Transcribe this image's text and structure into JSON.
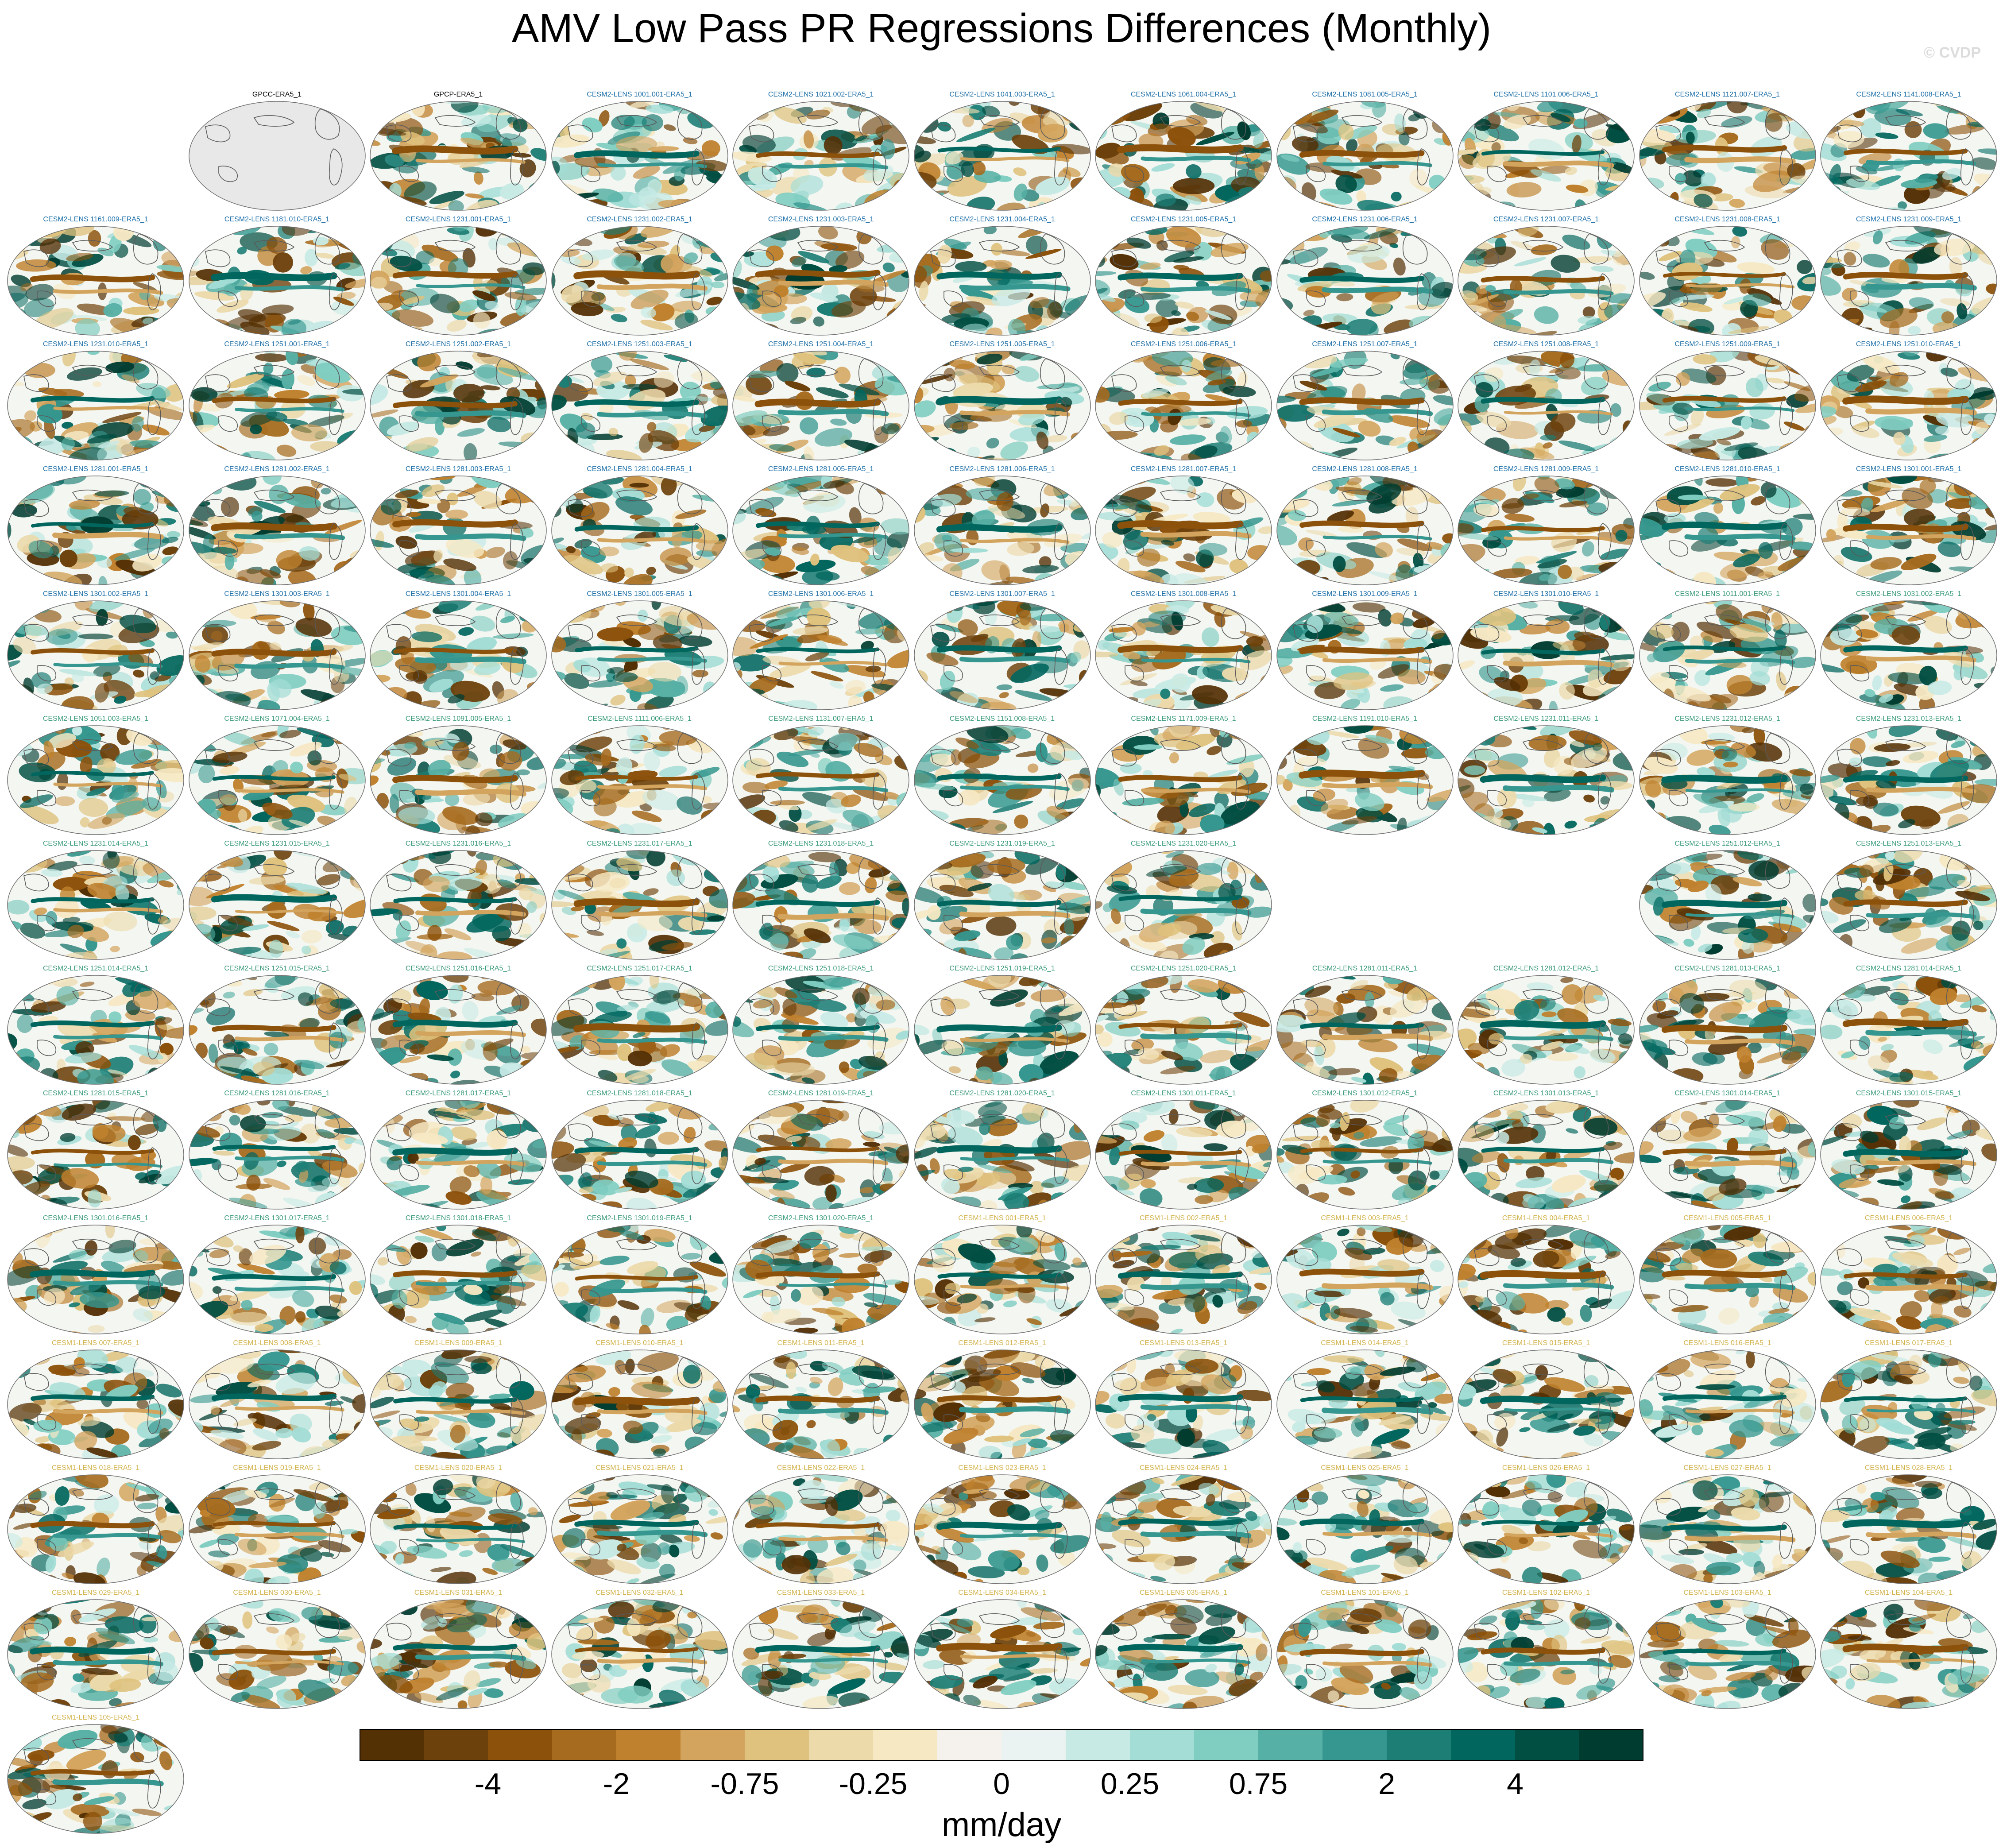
{
  "title": "AMV Low Pass PR Regressions Differences (Monthly)",
  "watermark": "© CVDP",
  "colors": {
    "observations_label": "#000000",
    "cesm2_run1_label": "#1d6fa8",
    "cesm2_run2_label": "#3a9a7a",
    "cesm1_label": "#d2b24a",
    "empty_map_fill": "#e8e8e8",
    "palette": [
      "#543005",
      "#6d410b",
      "#8c510a",
      "#a66b1e",
      "#bf812d",
      "#d3a45d",
      "#dfc27d",
      "#ecdaab",
      "#f6e8c3",
      "#f5f1ec",
      "#eaf3f1",
      "#c7eae5",
      "#a3ddd6",
      "#80cdc1",
      "#57b0a5",
      "#35978f",
      "#1c7e75",
      "#01665e",
      "#014e42",
      "#003c30"
    ]
  },
  "colorbar": {
    "tick_labels": [
      "-4",
      "-2",
      "-0.75",
      "-0.25",
      "0",
      "0.25",
      "0.75",
      "2",
      "4"
    ],
    "units": "mm/day"
  },
  "panels": [
    {
      "label": "GPCC-ERA5_1",
      "group": "obs",
      "empty": true
    },
    {
      "label": "GPCP-ERA5_1",
      "group": "obs"
    },
    {
      "label": "CESM2-LENS 1001.001-ERA5_1",
      "group": "cesm2a"
    },
    {
      "label": "CESM2-LENS 1021.002-ERA5_1",
      "group": "cesm2a"
    },
    {
      "label": "CESM2-LENS 1041.003-ERA5_1",
      "group": "cesm2a"
    },
    {
      "label": "CESM2-LENS 1061.004-ERA5_1",
      "group": "cesm2a"
    },
    {
      "label": "CESM2-LENS 1081.005-ERA5_1",
      "group": "cesm2a"
    },
    {
      "label": "CESM2-LENS 1101.006-ERA5_1",
      "group": "cesm2a"
    },
    {
      "label": "CESM2-LENS 1121.007-ERA5_1",
      "group": "cesm2a"
    },
    {
      "label": "CESM2-LENS 1141.008-ERA5_1",
      "group": "cesm2a"
    },
    {
      "label": "CESM2-LENS 1161.009-ERA5_1",
      "group": "cesm2a"
    },
    {
      "label": "CESM2-LENS 1181.010-ERA5_1",
      "group": "cesm2a"
    },
    {
      "label": "CESM2-LENS 1231.001-ERA5_1",
      "group": "cesm2a"
    },
    {
      "label": "CESM2-LENS 1231.002-ERA5_1",
      "group": "cesm2a"
    },
    {
      "label": "CESM2-LENS 1231.003-ERA5_1",
      "group": "cesm2a"
    },
    {
      "label": "CESM2-LENS 1231.004-ERA5_1",
      "group": "cesm2a"
    },
    {
      "label": "CESM2-LENS 1231.005-ERA5_1",
      "group": "cesm2a"
    },
    {
      "label": "CESM2-LENS 1231.006-ERA5_1",
      "group": "cesm2a"
    },
    {
      "label": "CESM2-LENS 1231.007-ERA5_1",
      "group": "cesm2a"
    },
    {
      "label": "CESM2-LENS 1231.008-ERA5_1",
      "group": "cesm2a"
    },
    {
      "label": "CESM2-LENS 1231.009-ERA5_1",
      "group": "cesm2a"
    },
    {
      "label": "CESM2-LENS 1231.010-ERA5_1",
      "group": "cesm2a"
    },
    {
      "label": "CESM2-LENS 1251.001-ERA5_1",
      "group": "cesm2a"
    },
    {
      "label": "CESM2-LENS 1251.002-ERA5_1",
      "group": "cesm2a"
    },
    {
      "label": "CESM2-LENS 1251.003-ERA5_1",
      "group": "cesm2a"
    },
    {
      "label": "CESM2-LENS 1251.004-ERA5_1",
      "group": "cesm2a"
    },
    {
      "label": "CESM2-LENS 1251.005-ERA5_1",
      "group": "cesm2a"
    },
    {
      "label": "CESM2-LENS 1251.006-ERA5_1",
      "group": "cesm2a"
    },
    {
      "label": "CESM2-LENS 1251.007-ERA5_1",
      "group": "cesm2a"
    },
    {
      "label": "CESM2-LENS 1251.008-ERA5_1",
      "group": "cesm2a"
    },
    {
      "label": "CESM2-LENS 1251.009-ERA5_1",
      "group": "cesm2a"
    },
    {
      "label": "CESM2-LENS 1251.010-ERA5_1",
      "group": "cesm2a"
    },
    {
      "label": "CESM2-LENS 1281.001-ERA5_1",
      "group": "cesm2a"
    },
    {
      "label": "CESM2-LENS 1281.002-ERA5_1",
      "group": "cesm2a"
    },
    {
      "label": "CESM2-LENS 1281.003-ERA5_1",
      "group": "cesm2a"
    },
    {
      "label": "CESM2-LENS 1281.004-ERA5_1",
      "group": "cesm2a"
    },
    {
      "label": "CESM2-LENS 1281.005-ERA5_1",
      "group": "cesm2a"
    },
    {
      "label": "CESM2-LENS 1281.006-ERA5_1",
      "group": "cesm2a"
    },
    {
      "label": "CESM2-LENS 1281.007-ERA5_1",
      "group": "cesm2a"
    },
    {
      "label": "CESM2-LENS 1281.008-ERA5_1",
      "group": "cesm2a"
    },
    {
      "label": "CESM2-LENS 1281.009-ERA5_1",
      "group": "cesm2a"
    },
    {
      "label": "CESM2-LENS 1281.010-ERA5_1",
      "group": "cesm2a"
    },
    {
      "label": "CESM2-LENS 1301.001-ERA5_1",
      "group": "cesm2a"
    },
    {
      "label": "CESM2-LENS 1301.002-ERA5_1",
      "group": "cesm2a"
    },
    {
      "label": "CESM2-LENS 1301.003-ERA5_1",
      "group": "cesm2a"
    },
    {
      "label": "CESM2-LENS 1301.004-ERA5_1",
      "group": "cesm2a"
    },
    {
      "label": "CESM2-LENS 1301.005-ERA5_1",
      "group": "cesm2a"
    },
    {
      "label": "CESM2-LENS 1301.006-ERA5_1",
      "group": "cesm2a"
    },
    {
      "label": "CESM2-LENS 1301.007-ERA5_1",
      "group": "cesm2a"
    },
    {
      "label": "CESM2-LENS 1301.008-ERA5_1",
      "group": "cesm2a"
    },
    {
      "label": "CESM2-LENS 1301.009-ERA5_1",
      "group": "cesm2a"
    },
    {
      "label": "CESM2-LENS 1301.010-ERA5_1",
      "group": "cesm2a"
    },
    {
      "label": "CESM2-LENS 1011.001-ERA5_1",
      "group": "cesm2b"
    },
    {
      "label": "CESM2-LENS 1031.002-ERA5_1",
      "group": "cesm2b"
    },
    {
      "label": "CESM2-LENS 1051.003-ERA5_1",
      "group": "cesm2b"
    },
    {
      "label": "CESM2-LENS 1071.004-ERA5_1",
      "group": "cesm2b"
    },
    {
      "label": "CESM2-LENS 1091.005-ERA5_1",
      "group": "cesm2b"
    },
    {
      "label": "CESM2-LENS 1111.006-ERA5_1",
      "group": "cesm2b"
    },
    {
      "label": "CESM2-LENS 1131.007-ERA5_1",
      "group": "cesm2b"
    },
    {
      "label": "CESM2-LENS 1151.008-ERA5_1",
      "group": "cesm2b"
    },
    {
      "label": "CESM2-LENS 1171.009-ERA5_1",
      "group": "cesm2b"
    },
    {
      "label": "CESM2-LENS 1191.010-ERA5_1",
      "group": "cesm2b"
    },
    {
      "label": "CESM2-LENS 1231.011-ERA5_1",
      "group": "cesm2b"
    },
    {
      "label": "CESM2-LENS 1231.012-ERA5_1",
      "group": "cesm2b"
    },
    {
      "label": "CESM2-LENS 1231.013-ERA5_1",
      "group": "cesm2b"
    },
    {
      "label": "CESM2-LENS 1231.014-ERA5_1",
      "group": "cesm2b"
    },
    {
      "label": "CESM2-LENS 1231.015-ERA5_1",
      "group": "cesm2b"
    },
    {
      "label": "CESM2-LENS 1231.016-ERA5_1",
      "group": "cesm2b"
    },
    {
      "label": "CESM2-LENS 1231.017-ERA5_1",
      "group": "cesm2b"
    },
    {
      "label": "CESM2-LENS 1231.018-ERA5_1",
      "group": "cesm2b"
    },
    {
      "label": "CESM2-LENS 1231.019-ERA5_1",
      "group": "cesm2b"
    },
    {
      "label": "CESM2-LENS 1231.020-ERA5_1",
      "group": "cesm2b"
    },
    null,
    null,
    {
      "label": "CESM2-LENS 1251.012-ERA5_1",
      "group": "cesm2b"
    },
    {
      "label": "CESM2-LENS 1251.013-ERA5_1",
      "group": "cesm2b"
    },
    {
      "label": "CESM2-LENS 1251.014-ERA5_1",
      "group": "cesm2b"
    },
    {
      "label": "CESM2-LENS 1251.015-ERA5_1",
      "group": "cesm2b"
    },
    {
      "label": "CESM2-LENS 1251.016-ERA5_1",
      "group": "cesm2b"
    },
    {
      "label": "CESM2-LENS 1251.017-ERA5_1",
      "group": "cesm2b"
    },
    {
      "label": "CESM2-LENS 1251.018-ERA5_1",
      "group": "cesm2b"
    },
    {
      "label": "CESM2-LENS 1251.019-ERA5_1",
      "group": "cesm2b"
    },
    {
      "label": "CESM2-LENS 1251.020-ERA5_1",
      "group": "cesm2b"
    },
    {
      "label": "CESM2-LENS 1281.011-ERA5_1",
      "group": "cesm2b"
    },
    {
      "label": "CESM2-LENS 1281.012-ERA5_1",
      "group": "cesm2b"
    },
    {
      "label": "CESM2-LENS 1281.013-ERA5_1",
      "group": "cesm2b"
    },
    {
      "label": "CESM2-LENS 1281.014-ERA5_1",
      "group": "cesm2b"
    },
    {
      "label": "CESM2-LENS 1281.015-ERA5_1",
      "group": "cesm2b"
    },
    {
      "label": "CESM2-LENS 1281.016-ERA5_1",
      "group": "cesm2b"
    },
    {
      "label": "CESM2-LENS 1281.017-ERA5_1",
      "group": "cesm2b"
    },
    {
      "label": "CESM2-LENS 1281.018-ERA5_1",
      "group": "cesm2b"
    },
    {
      "label": "CESM2-LENS 1281.019-ERA5_1",
      "group": "cesm2b"
    },
    {
      "label": "CESM2-LENS 1281.020-ERA5_1",
      "group": "cesm2b"
    },
    {
      "label": "CESM2-LENS 1301.011-ERA5_1",
      "group": "cesm2b"
    },
    {
      "label": "CESM2-LENS 1301.012-ERA5_1",
      "group": "cesm2b"
    },
    {
      "label": "CESM2-LENS 1301.013-ERA5_1",
      "group": "cesm2b"
    },
    {
      "label": "CESM2-LENS 1301.014-ERA5_1",
      "group": "cesm2b"
    },
    {
      "label": "CESM2-LENS 1301.015-ERA5_1",
      "group": "cesm2b"
    },
    {
      "label": "CESM2-LENS 1301.016-ERA5_1",
      "group": "cesm2b"
    },
    {
      "label": "CESM2-LENS 1301.017-ERA5_1",
      "group": "cesm2b"
    },
    {
      "label": "CESM2-LENS 1301.018-ERA5_1",
      "group": "cesm2b"
    },
    {
      "label": "CESM2-LENS 1301.019-ERA5_1",
      "group": "cesm2b"
    },
    {
      "label": "CESM2-LENS 1301.020-ERA5_1",
      "group": "cesm2b"
    },
    {
      "label": "CESM1-LENS 001-ERA5_1",
      "group": "cesm1"
    },
    {
      "label": "CESM1-LENS 002-ERA5_1",
      "group": "cesm1"
    },
    {
      "label": "CESM1-LENS 003-ERA5_1",
      "group": "cesm1"
    },
    {
      "label": "CESM1-LENS 004-ERA5_1",
      "group": "cesm1"
    },
    {
      "label": "CESM1-LENS 005-ERA5_1",
      "group": "cesm1"
    },
    {
      "label": "CESM1-LENS 006-ERA5_1",
      "group": "cesm1"
    },
    {
      "label": "CESM1-LENS 007-ERA5_1",
      "group": "cesm1"
    },
    {
      "label": "CESM1-LENS 008-ERA5_1",
      "group": "cesm1"
    },
    {
      "label": "CESM1-LENS 009-ERA5_1",
      "group": "cesm1"
    },
    {
      "label": "CESM1-LENS 010-ERA5_1",
      "group": "cesm1"
    },
    {
      "label": "CESM1-LENS 011-ERA5_1",
      "group": "cesm1"
    },
    {
      "label": "CESM1-LENS 012-ERA5_1",
      "group": "cesm1"
    },
    {
      "label": "CESM1-LENS 013-ERA5_1",
      "group": "cesm1"
    },
    {
      "label": "CESM1-LENS 014-ERA5_1",
      "group": "cesm1"
    },
    {
      "label": "CESM1-LENS 015-ERA5_1",
      "group": "cesm1"
    },
    {
      "label": "CESM1-LENS 016-ERA5_1",
      "group": "cesm1"
    },
    {
      "label": "CESM1-LENS 017-ERA5_1",
      "group": "cesm1"
    },
    {
      "label": "CESM1-LENS 018-ERA5_1",
      "group": "cesm1"
    },
    {
      "label": "CESM1-LENS 019-ERA5_1",
      "group": "cesm1"
    },
    {
      "label": "CESM1-LENS 020-ERA5_1",
      "group": "cesm1"
    },
    {
      "label": "CESM1-LENS 021-ERA5_1",
      "group": "cesm1"
    },
    {
      "label": "CESM1-LENS 022-ERA5_1",
      "group": "cesm1"
    },
    {
      "label": "CESM1-LENS 023-ERA5_1",
      "group": "cesm1"
    },
    {
      "label": "CESM1-LENS 024-ERA5_1",
      "group": "cesm1"
    },
    {
      "label": "CESM1-LENS 025-ERA5_1",
      "group": "cesm1"
    },
    {
      "label": "CESM1-LENS 026-ERA5_1",
      "group": "cesm1"
    },
    {
      "label": "CESM1-LENS 027-ERA5_1",
      "group": "cesm1"
    },
    {
      "label": "CESM1-LENS 028-ERA5_1",
      "group": "cesm1"
    },
    {
      "label": "CESM1-LENS 029-ERA5_1",
      "group": "cesm1"
    },
    {
      "label": "CESM1-LENS 030-ERA5_1",
      "group": "cesm1"
    },
    {
      "label": "CESM1-LENS 031-ERA5_1",
      "group": "cesm1"
    },
    {
      "label": "CESM1-LENS 032-ERA5_1",
      "group": "cesm1"
    },
    {
      "label": "CESM1-LENS 033-ERA5_1",
      "group": "cesm1"
    },
    {
      "label": "CESM1-LENS 034-ERA5_1",
      "group": "cesm1"
    },
    {
      "label": "CESM1-LENS 035-ERA5_1",
      "group": "cesm1"
    },
    {
      "label": "CESM1-LENS 101-ERA5_1",
      "group": "cesm1"
    },
    {
      "label": "CESM1-LENS 102-ERA5_1",
      "group": "cesm1"
    },
    {
      "label": "CESM1-LENS 103-ERA5_1",
      "group": "cesm1"
    },
    {
      "label": "CESM1-LENS 104-ERA5_1",
      "group": "cesm1"
    },
    {
      "label": "CESM1-LENS 105-ERA5_1",
      "group": "cesm1"
    }
  ]
}
